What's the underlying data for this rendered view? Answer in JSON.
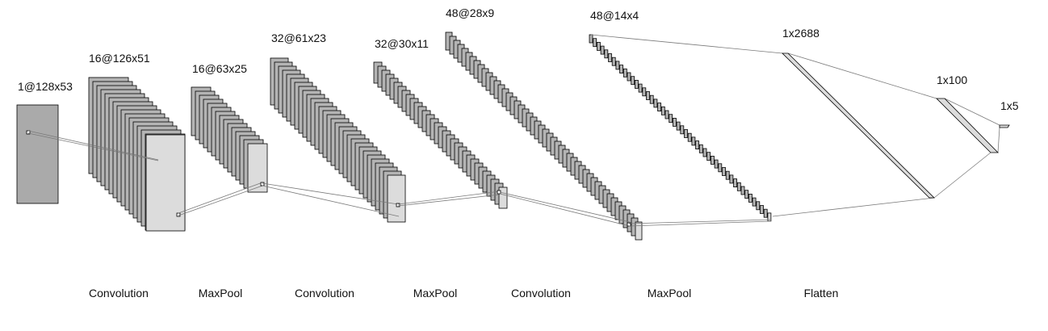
{
  "diagram": {
    "layers": [
      {
        "label": "1@128x53"
      },
      {
        "label": "16@126x51"
      },
      {
        "label": "16@63x25"
      },
      {
        "label": "32@61x23"
      },
      {
        "label": "32@30x11"
      },
      {
        "label": "48@28x9"
      },
      {
        "label": "48@14x4"
      },
      {
        "label": "1x2688"
      },
      {
        "label": "1x100"
      },
      {
        "label": "1x5"
      }
    ],
    "operations": [
      {
        "label": "Convolution"
      },
      {
        "label": "MaxPool"
      },
      {
        "label": "Convolution"
      },
      {
        "label": "MaxPool"
      },
      {
        "label": "Convolution"
      },
      {
        "label": "MaxPool"
      },
      {
        "label": "Flatten"
      }
    ]
  },
  "colors": {
    "map_fill": "#b4b4b4",
    "front_fill": "#dcdcdc",
    "stroke": "#000000",
    "connector": "#7a7a7a"
  }
}
